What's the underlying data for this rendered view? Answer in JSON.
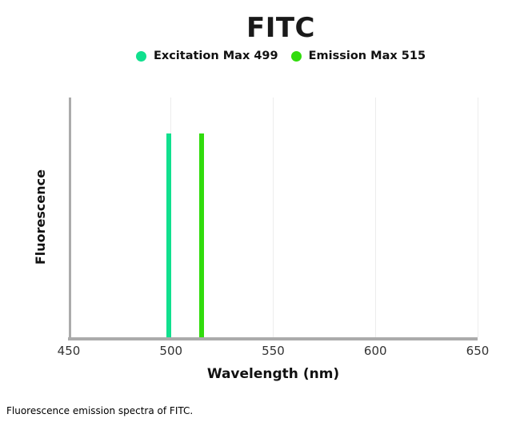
{
  "title": "FITC",
  "legend": [
    {
      "label": "Excitation Max 499",
      "color": "#10E08E"
    },
    {
      "label": "Emission Max 515",
      "color": "#31DC0D"
    }
  ],
  "axes": {
    "x_label": "Wavelength (nm)",
    "y_label": "Fluorescence"
  },
  "caption": "Fluorescence emission spectra of FITC.",
  "colors": {
    "axis_spine": "#ababab",
    "gridline": "#ececec",
    "title_text": "#1a1a1a",
    "tick_text": "#333333"
  },
  "chart_data": {
    "type": "line",
    "subtype": "spectral-peak-spikes",
    "title": "FITC",
    "xlabel": "Wavelength (nm)",
    "ylabel": "Fluorescence",
    "xlim": [
      450,
      650
    ],
    "x_ticks": [
      450,
      500,
      550,
      600,
      650
    ],
    "y_axis_ticks": "none",
    "grid": "vertical-only",
    "legend_position": "top-center",
    "series": [
      {
        "name": "Excitation Max 499",
        "role": "excitation",
        "peak_wavelength_nm": 499,
        "relative_intensity": 1.0,
        "color": "#10E08E"
      },
      {
        "name": "Emission Max 515",
        "role": "emission",
        "peak_wavelength_nm": 515,
        "relative_intensity": 1.0,
        "color": "#31DC0D"
      }
    ]
  }
}
